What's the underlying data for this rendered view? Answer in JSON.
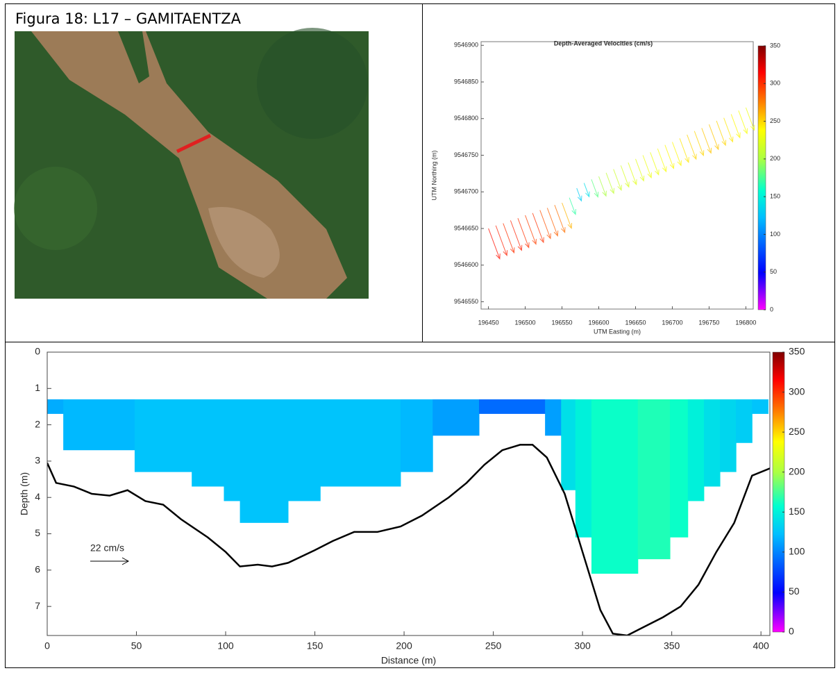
{
  "caption": "Figura 18: L17 – GAMITAENTZA",
  "chart_data": [
    {
      "type": "quiver",
      "title": "Depth-Averaged Velocities (cm/s)",
      "xlabel": "UTM Easting (m)",
      "ylabel": "UTM Northing (m)",
      "x": [
        196450,
        196460,
        196470,
        196480,
        196490,
        196500,
        196510,
        196520,
        196530,
        196540,
        196550,
        196560,
        196570,
        196580,
        196590,
        196600,
        196610,
        196620,
        196630,
        196640,
        196650,
        196660,
        196670,
        196680,
        196690,
        196700,
        196710,
        196720,
        196730,
        196740,
        196750,
        196760,
        196770,
        196780,
        196790,
        196800
      ],
      "y": [
        9546650,
        9546654,
        9546657,
        9546661,
        9546664,
        9546668,
        9546671,
        9546675,
        9546678,
        9546682,
        9546685,
        9546692,
        9546705,
        9546712,
        9546717,
        9546721,
        9546726,
        9546731,
        9546736,
        9546740,
        9546745,
        9546750,
        9546754,
        9546759,
        9546764,
        9546768,
        9546773,
        9546778,
        9546783,
        9546787,
        9546792,
        9546797,
        9546801,
        9546806,
        9546811,
        9546815
      ],
      "values": [
        310,
        305,
        300,
        305,
        300,
        295,
        300,
        290,
        285,
        280,
        260,
        170,
        130,
        140,
        180,
        200,
        210,
        215,
        220,
        225,
        225,
        230,
        230,
        235,
        240,
        240,
        245,
        250,
        250,
        255,
        255,
        250,
        245,
        240,
        235,
        230
      ],
      "xlim": [
        196440,
        196810
      ],
      "xticks": [
        196450,
        196500,
        196550,
        196600,
        196650,
        196700,
        196750,
        196800
      ],
      "ylim": [
        9546540,
        9546905
      ],
      "yticks": [
        9546550,
        9546600,
        9546650,
        9546700,
        9546750,
        9546800,
        9546850,
        9546900
      ],
      "clim": [
        0,
        350
      ],
      "cticks": [
        0,
        50,
        100,
        150,
        200,
        250,
        300,
        350
      ]
    },
    {
      "type": "section",
      "xlabel": "Distance (m)",
      "ylabel": "Depth (m)",
      "scale_label": "22 cm/s",
      "top": 1.3,
      "edges": [
        0,
        9,
        49,
        81,
        99,
        108,
        135,
        153,
        198,
        216,
        242,
        279,
        288,
        296,
        305,
        331,
        349,
        359,
        368,
        377,
        386,
        395,
        404
      ],
      "bottoms": [
        1.7,
        2.7,
        3.3,
        3.7,
        4.1,
        4.7,
        4.1,
        3.7,
        3.3,
        2.3,
        1.7,
        2.3,
        3.8,
        5.1,
        6.1,
        5.7,
        5.1,
        4.1,
        3.7,
        3.3,
        2.5,
        1.7
      ],
      "values": [
        115,
        120,
        125,
        125,
        125,
        125,
        125,
        125,
        120,
        110,
        90,
        110,
        140,
        150,
        160,
        165,
        160,
        150,
        140,
        135,
        130,
        125
      ],
      "line_x": [
        0,
        5,
        15,
        25,
        35,
        45,
        55,
        65,
        75,
        90,
        100,
        108,
        118,
        126,
        135,
        150,
        160,
        172,
        185,
        198,
        210,
        225,
        235,
        245,
        255,
        265,
        272,
        280,
        290,
        300,
        310,
        317,
        325,
        333,
        345,
        355,
        365,
        375,
        385,
        395,
        405
      ],
      "line_y": [
        3.05,
        3.6,
        3.7,
        3.9,
        3.95,
        3.8,
        4.1,
        4.2,
        4.6,
        5.1,
        5.5,
        5.9,
        5.85,
        5.9,
        5.8,
        5.45,
        5.2,
        4.95,
        4.95,
        4.8,
        4.5,
        4.0,
        3.6,
        3.1,
        2.7,
        2.55,
        2.55,
        2.9,
        3.9,
        5.5,
        7.1,
        7.75,
        7.8,
        7.6,
        7.3,
        7.0,
        6.4,
        5.5,
        4.7,
        3.4,
        3.2
      ],
      "line_color": "#000000",
      "xlim": [
        0,
        405
      ],
      "xticks": [
        0,
        50,
        100,
        150,
        200,
        250,
        300,
        350,
        400
      ],
      "ylim": [
        0,
        7.8
      ],
      "yticks": [
        0,
        1,
        2,
        3,
        4,
        5,
        6,
        7
      ],
      "y_inverted": true,
      "clim": [
        0,
        350
      ],
      "cticks": [
        0,
        50,
        100,
        150,
        200,
        250,
        300,
        350
      ]
    }
  ]
}
